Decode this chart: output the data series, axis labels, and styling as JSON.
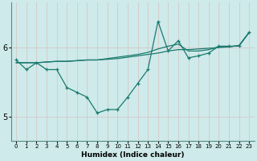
{
  "xlabel": "Humidex (Indice chaleur)",
  "background_color": "#ceeaea",
  "line_color": "#1a7a6e",
  "grid_color": "#aacece",
  "x_data": [
    0,
    1,
    2,
    3,
    4,
    5,
    6,
    7,
    8,
    9,
    10,
    11,
    12,
    13,
    14,
    15,
    16,
    17,
    18,
    19,
    20,
    21,
    22,
    23
  ],
  "y_main": [
    5.82,
    5.68,
    5.78,
    5.68,
    5.68,
    5.42,
    5.35,
    5.28,
    5.05,
    5.1,
    5.1,
    5.28,
    5.48,
    5.68,
    6.38,
    5.95,
    6.1,
    5.85,
    5.88,
    5.92,
    6.02,
    6.02,
    6.02,
    6.22
  ],
  "y_trend1": [
    5.78,
    5.78,
    5.78,
    5.79,
    5.8,
    5.8,
    5.81,
    5.82,
    5.82,
    5.83,
    5.84,
    5.86,
    5.88,
    5.9,
    5.92,
    5.95,
    5.97,
    5.97,
    5.98,
    5.99,
    6.0,
    6.01,
    6.03,
    6.22
  ],
  "y_trend2": [
    5.78,
    5.78,
    5.78,
    5.79,
    5.8,
    5.8,
    5.81,
    5.82,
    5.82,
    5.84,
    5.86,
    5.88,
    5.9,
    5.93,
    5.98,
    6.02,
    6.05,
    5.95,
    5.95,
    5.97,
    6.01,
    6.01,
    6.03,
    6.22
  ],
  "ylim": [
    4.65,
    6.65
  ],
  "xlim": [
    -0.5,
    23.5
  ],
  "yticks": [
    5,
    6
  ],
  "xticks": [
    0,
    1,
    2,
    3,
    4,
    5,
    6,
    7,
    8,
    9,
    10,
    11,
    12,
    13,
    14,
    15,
    16,
    17,
    18,
    19,
    20,
    21,
    22,
    23
  ]
}
